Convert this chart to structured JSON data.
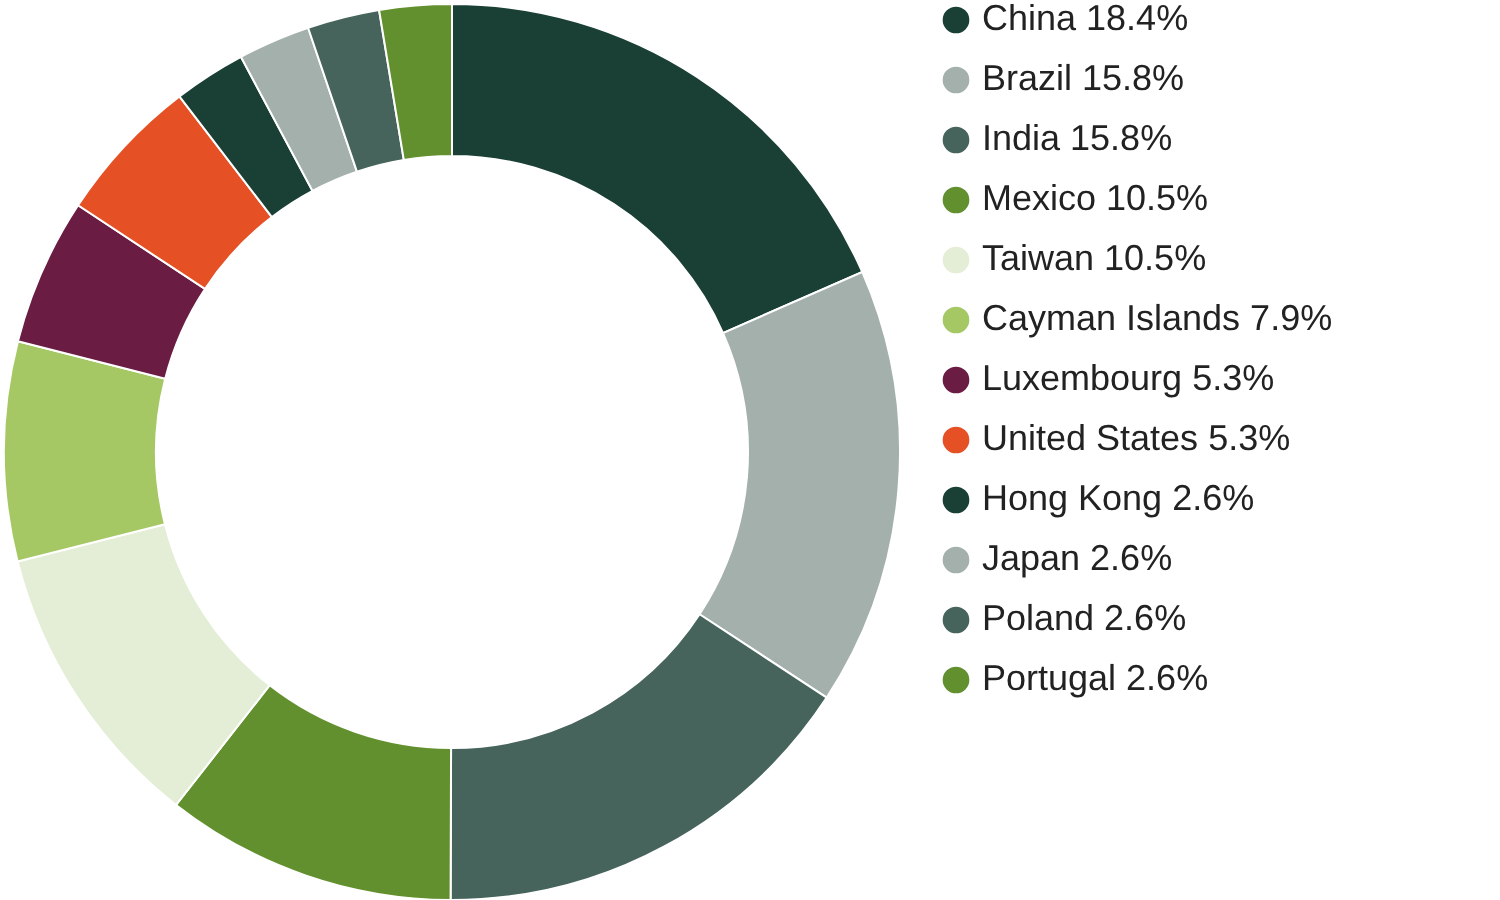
{
  "chart_data": {
    "type": "donut",
    "categories": [
      "China",
      "Brazil",
      "India",
      "Mexico",
      "Taiwan",
      "Cayman Islands",
      "Luxembourg",
      "United States",
      "Hong Kong",
      "Japan",
      "Poland",
      "Portugal"
    ],
    "values": [
      18.4,
      15.8,
      15.8,
      10.5,
      10.5,
      7.9,
      5.3,
      5.3,
      2.6,
      2.6,
      2.6,
      2.6
    ],
    "value_labels": [
      "18.4%",
      "15.8%",
      "15.8%",
      "10.5%",
      "10.5%",
      "7.9%",
      "5.3%",
      "5.3%",
      "2.6%",
      "2.6%",
      "2.6%",
      "2.6%"
    ],
    "colors": [
      "#1a4035",
      "#a3b0ab",
      "#47645c",
      "#62902e",
      "#e4eed6",
      "#a5c864",
      "#6b1c42",
      "#e55025",
      "#1a4035",
      "#a3b0ab",
      "#47645c",
      "#62902e"
    ],
    "legend": "right"
  }
}
